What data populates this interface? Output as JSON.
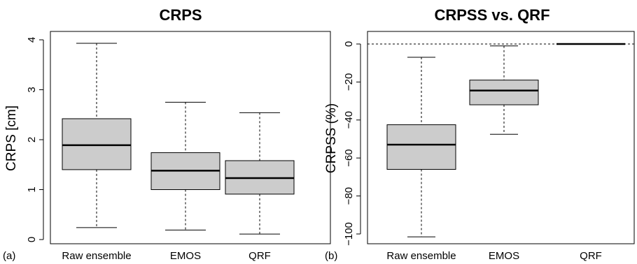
{
  "chart_data": [
    {
      "type": "box",
      "title": "CRPS",
      "ylabel": "CRPS [cm]",
      "panel_label": "(a)",
      "categories": [
        "Raw ensemble",
        "EMOS",
        "QRF"
      ],
      "boxes": [
        {
          "min": 0.24,
          "q1": 1.4,
          "median": 1.89,
          "q3": 2.42,
          "max": 3.93
        },
        {
          "min": 0.19,
          "q1": 1.0,
          "median": 1.38,
          "q3": 1.74,
          "max": 2.75
        },
        {
          "min": 0.11,
          "q1": 0.91,
          "median": 1.23,
          "q3": 1.58,
          "max": 2.54
        }
      ],
      "ylim": [
        0,
        4
      ],
      "yticks": [
        0,
        1,
        2,
        3,
        4
      ],
      "ytick_labels": [
        "0",
        "1",
        "2",
        "3",
        "4"
      ],
      "reference_line": null
    },
    {
      "type": "box",
      "title": "CRPSS vs. QRF",
      "ylabel": "CRPSS (%)",
      "panel_label": "(b)",
      "categories": [
        "Raw ensemble",
        "EMOS",
        "QRF"
      ],
      "boxes": [
        {
          "min": -101.5,
          "q1": -66.0,
          "median": -53.0,
          "q3": -42.5,
          "max": -7.0
        },
        {
          "min": -47.5,
          "q1": -32.0,
          "median": -24.5,
          "q3": -19.0,
          "max": -1.0
        },
        {
          "min": 0,
          "q1": 0,
          "median": 0,
          "q3": 0,
          "max": 0
        }
      ],
      "ylim": [
        -103,
        3
      ],
      "yticks": [
        0,
        -20,
        -40,
        -60,
        -80,
        -100
      ],
      "ytick_labels": [
        "0",
        "−20",
        "−40",
        "−60",
        "−80",
        "−100"
      ],
      "reference_line": 0
    }
  ]
}
